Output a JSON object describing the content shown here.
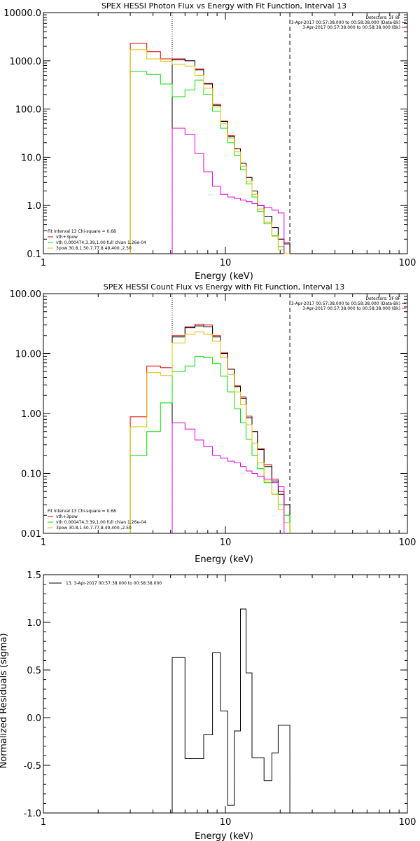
{
  "chart_data": [
    {
      "type": "line",
      "title": "SPEX HESSI Photon Flux vs Energy with Fit Function, Interval 13",
      "xlabel": "Energy (keV)",
      "ylabel": "",
      "xscale": "log",
      "yscale": "log",
      "xlim": [
        1,
        100
      ],
      "ylim": [
        0.1,
        10000
      ],
      "xticks": [
        "1",
        "10",
        "100"
      ],
      "yticks": [
        "0.1",
        "1.0",
        "10.0",
        "100.0",
        "1000.0",
        "10000.0"
      ],
      "vlines": {
        "dotted": 5.1,
        "dashed": 22.6
      },
      "header_lines": [
        "Detectors: 3F 8F",
        "3-Apr-2017 00:57:38.000 to 00:58:38.000 (Data-Bk)",
        "3-Apr-2017 00:57:38.000 to 00:58:38.000 (Bk)"
      ],
      "legend_lines": [
        "Fit Interval 13    Chi-square = 0.68",
        "vth+3pow",
        "vth 0.000474,3.39,1.00  full chian 1.26e-04",
        "3pow 30.8,1.50,7.77,8.49,400.,2.50"
      ],
      "bin_edges": [
        3.0,
        3.7,
        4.4,
        5.1,
        6.0,
        6.8,
        7.6,
        8.5,
        9.4,
        10.3,
        11.2,
        12.1,
        13.0,
        14.0,
        15.0,
        16.3,
        18.0,
        19.5,
        21.0,
        22.6,
        24.5
      ],
      "series": [
        {
          "name": "Data-Bk",
          "color": "#000000",
          "values": [
            null,
            null,
            null,
            1050,
            1000,
            650,
            330,
            120,
            55,
            27,
            15,
            7.5,
            3.8,
            2.0,
            1.0,
            0.6,
            0.35,
            0.2,
            0.16,
            null
          ]
        },
        {
          "name": "vth+3pow",
          "color": "#dd0000",
          "values": [
            2300,
            1550,
            1100,
            1100,
            1000,
            680,
            340,
            125,
            56,
            28,
            15,
            7.5,
            3.8,
            2.0,
            1.0,
            0.6,
            0.35,
            0.2,
            0.17,
            null
          ]
        },
        {
          "name": "vth",
          "color": "#00dd00",
          "values": [
            600,
            520,
            330,
            180,
            250,
            400,
            200,
            90,
            40,
            20,
            11,
            5.5,
            2.8,
            1.5,
            0.75,
            0.42,
            0.24,
            0.14,
            0.1,
            null
          ]
        },
        {
          "name": "3pow",
          "color": "#e0c000",
          "values": [
            1700,
            1100,
            980,
            850,
            780,
            500,
            270,
            110,
            50,
            25,
            13,
            6.5,
            3.2,
            1.7,
            0.85,
            0.45,
            0.23,
            0.12,
            0.07,
            null
          ]
        },
        {
          "name": "Bk",
          "color": "#dd00dd",
          "values": [
            null,
            null,
            null,
            40,
            30,
            12,
            5,
            2.5,
            1.7,
            1.5,
            1.4,
            1.3,
            1.2,
            1.1,
            1.0,
            0.9,
            0.8,
            0.7,
            null,
            null
          ]
        }
      ]
    },
    {
      "type": "line",
      "title": "SPEX HESSI Count Flux vs Energy with Fit Function, Interval 13",
      "xlabel": "Energy (keV)",
      "ylabel": "",
      "xscale": "log",
      "yscale": "log",
      "xlim": [
        1,
        100
      ],
      "ylim": [
        0.01,
        100
      ],
      "xticks": [
        "1",
        "10",
        "100"
      ],
      "yticks": [
        "0.01",
        "0.10",
        "1.00",
        "10.00",
        "100.00"
      ],
      "vlines": {
        "dotted": 5.1,
        "dashed": 22.6
      },
      "header_lines": [
        "Detectors: 3F 8F",
        "3-Apr-2017 00:57:38.000 to 00:58:38.000 (Data-Bk)",
        "3-Apr-2017 00:57:38.000 to 00:58:38.000 (Bk)"
      ],
      "legend_lines": [
        "Fit Interval 13    Chi-square = 0.68",
        "vth+3pow",
        "vth 0.000474,3.39,1.00  full chian 1.26e-04",
        "3pow 30.8,1.50,7.77,8.49,400.,2.50"
      ],
      "bin_edges": [
        3.0,
        3.7,
        4.4,
        5.1,
        6.0,
        6.8,
        7.6,
        8.5,
        9.4,
        10.3,
        11.2,
        12.1,
        13.0,
        14.0,
        15.0,
        16.3,
        18.0,
        19.5,
        21.0,
        22.6,
        24.5
      ],
      "series": [
        {
          "name": "Data-Bk",
          "color": "#000000",
          "values": [
            null,
            null,
            null,
            19,
            27,
            29,
            28,
            19,
            10,
            5.5,
            2.8,
            1.8,
            0.85,
            0.5,
            0.25,
            0.13,
            0.075,
            0.045,
            0.03,
            null
          ]
        },
        {
          "name": "vth+3pow",
          "color": "#dd0000",
          "values": [
            0.88,
            6.2,
            5.8,
            20,
            28,
            31,
            30,
            20,
            10.5,
            5.5,
            2.9,
            1.9,
            0.9,
            0.5,
            0.26,
            0.14,
            0.08,
            0.05,
            0.03,
            null
          ]
        },
        {
          "name": "vth",
          "color": "#00dd00",
          "values": [
            0.2,
            0.5,
            1.5,
            5.0,
            6.2,
            9.0,
            8.5,
            6.8,
            4.2,
            2.3,
            1.2,
            0.7,
            0.37,
            0.2,
            0.12,
            0.07,
            0.045,
            0.03,
            0.02,
            null
          ]
        },
        {
          "name": "3pow",
          "color": "#e0c000",
          "values": [
            0.6,
            4.8,
            4.3,
            15,
            21,
            23,
            21,
            16,
            8.5,
            4.5,
            2.3,
            1.4,
            0.65,
            0.32,
            0.15,
            0.075,
            0.045,
            0.025,
            0.015,
            null
          ]
        },
        {
          "name": "Bk",
          "color": "#dd00dd",
          "values": [
            null,
            null,
            null,
            0.7,
            0.55,
            0.36,
            0.28,
            0.2,
            0.18,
            0.16,
            0.15,
            0.13,
            0.11,
            0.1,
            0.09,
            0.08,
            0.07,
            0.06,
            null,
            null
          ]
        }
      ]
    },
    {
      "type": "line",
      "title": "",
      "xlabel": "Energy (keV)",
      "ylabel": "Normalized Residuals (sigma)",
      "xscale": "log",
      "xlim": [
        1,
        100
      ],
      "ylim": [
        -1.0,
        1.5
      ],
      "xticks": [
        "1",
        "10",
        "100"
      ],
      "yticks": [
        "-1.0",
        "-0.5",
        "0.0",
        "0.5",
        "1.0",
        "1.5"
      ],
      "legend_lines": [
        "13.  3-Apr-2017 00:57:38.000 to 00:58:38.000"
      ],
      "bin_edges": [
        5.1,
        6.0,
        6.8,
        7.6,
        8.5,
        9.4,
        10.3,
        11.2,
        12.1,
        13.0,
        14.0,
        15.0,
        16.3,
        18.0,
        19.5,
        21.0,
        22.6
      ],
      "series": [
        {
          "name": "",
          "color": "#000000",
          "values": [
            0.63,
            -0.43,
            -0.43,
            -0.18,
            0.68,
            0.07,
            -0.92,
            -0.14,
            1.14,
            0.47,
            -0.42,
            -0.42,
            -0.66,
            -0.37,
            -0.08,
            -0.08
          ]
        }
      ]
    }
  ]
}
